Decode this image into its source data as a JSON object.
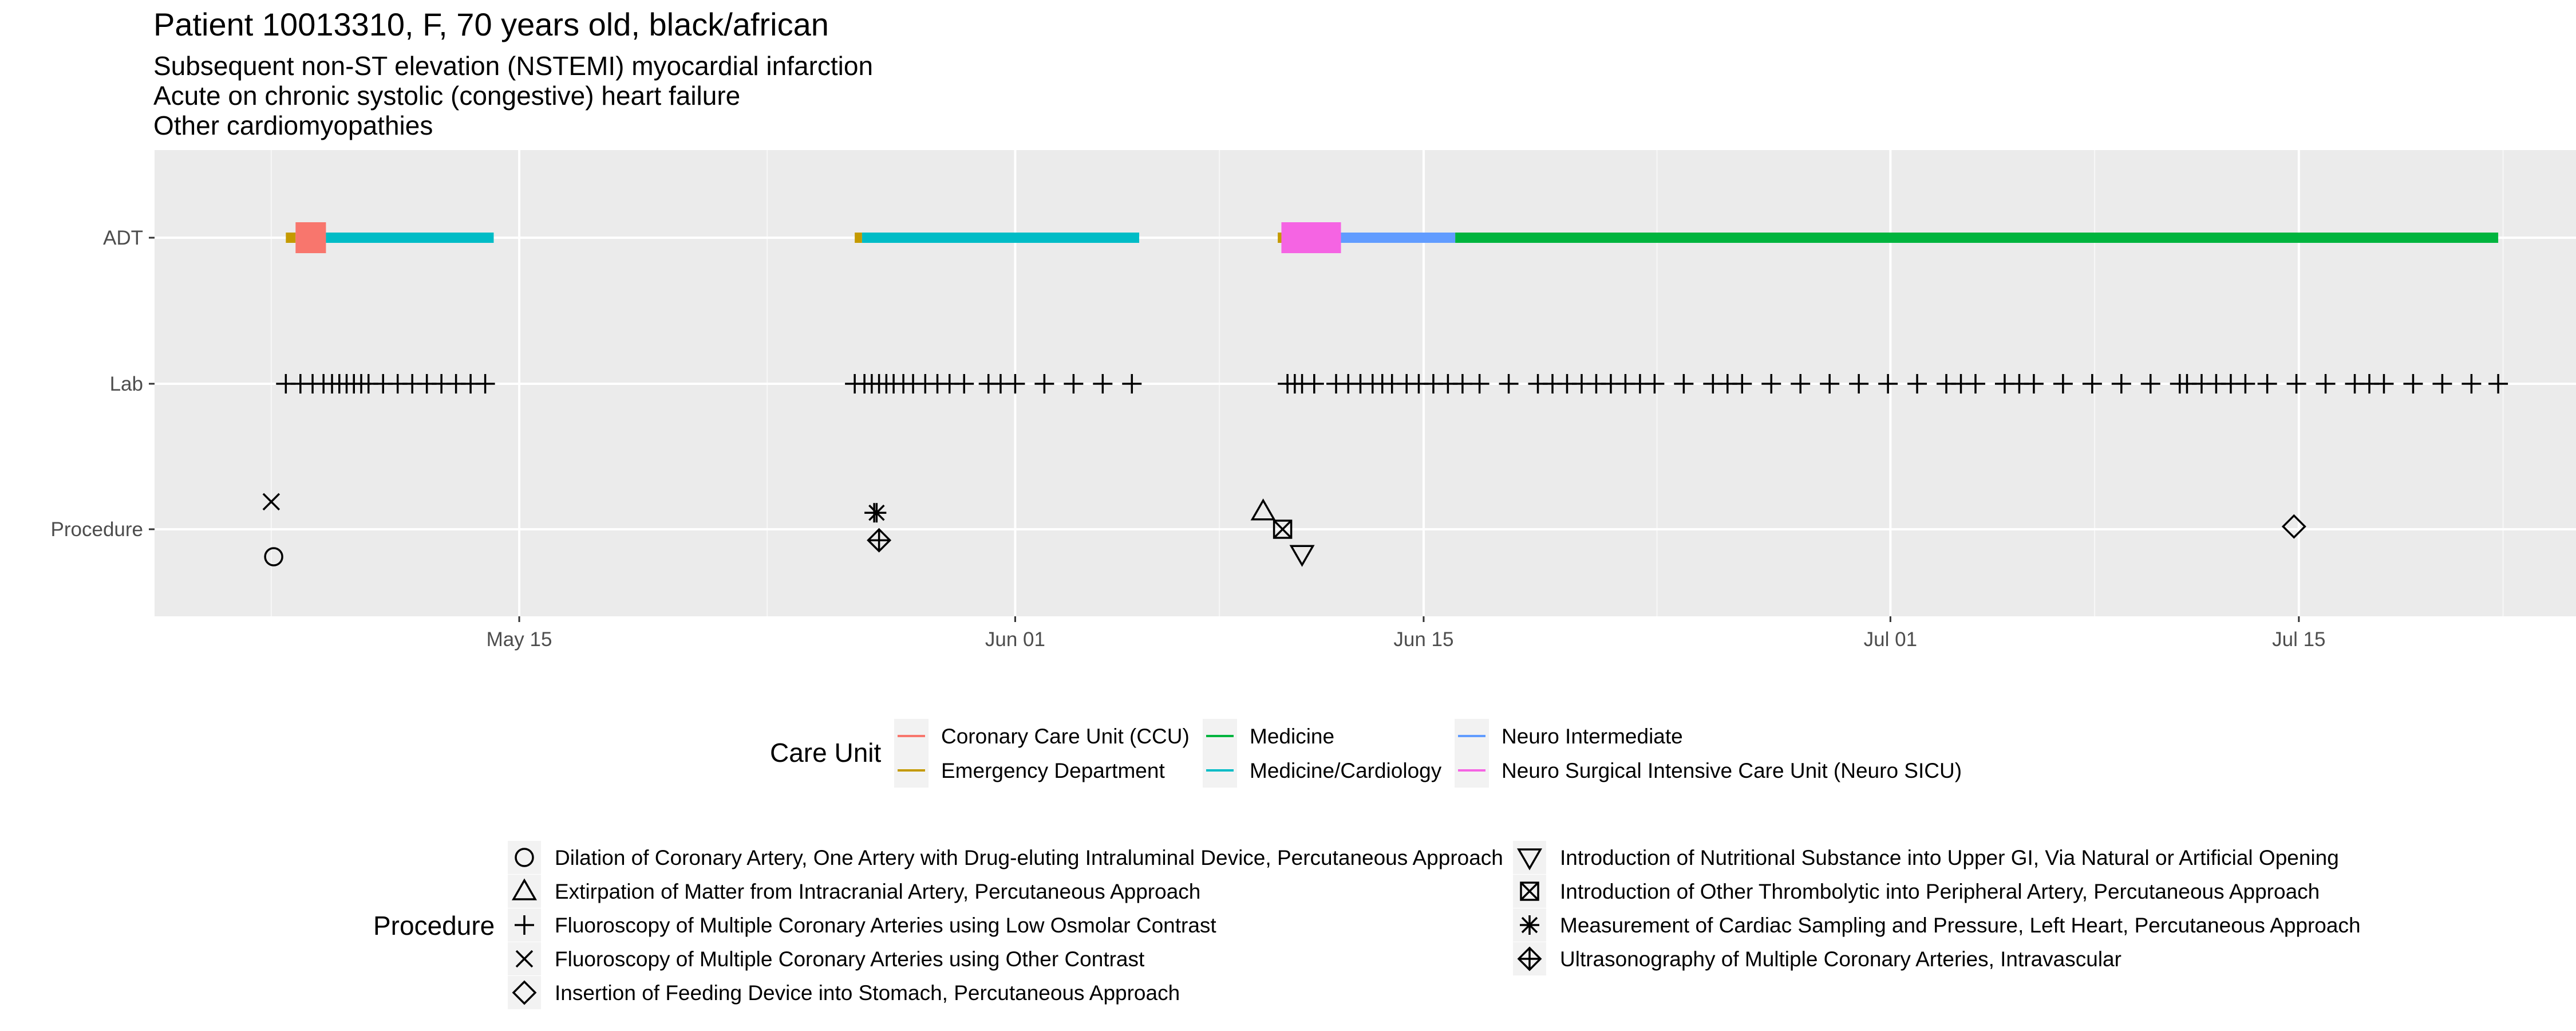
{
  "chart_data": {
    "type": "timeline",
    "title": "Patient 10013310, F, 70 years old, black/african",
    "subtitle_lines": [
      "Subsequent non-ST elevation (NSTEMI) myocardial infarction",
      "Acute on chronic systolic (congestive) heart failure",
      "Other cardiomyopathies"
    ],
    "y_categories": [
      "ADT",
      "Lab",
      "Procedure"
    ],
    "x_ticks": [
      {
        "label": "May 15",
        "date": "2170-05-15"
      },
      {
        "label": "Jun 01",
        "date": "2170-06-01"
      },
      {
        "label": "Jun 15",
        "date": "2170-06-15"
      },
      {
        "label": "Jul 01",
        "date": "2170-07-01"
      },
      {
        "label": "Jul 15",
        "date": "2170-07-15"
      }
    ],
    "xlim": [
      "2170-05-02T12:00",
      "2170-07-24T12:00"
    ],
    "grid": true,
    "care_unit_legend": {
      "title": "Care Unit",
      "items": [
        {
          "name": "Coronary Care Unit (CCU)",
          "color": "#F8766D"
        },
        {
          "name": "Emergency Department",
          "color": "#C49A00"
        },
        {
          "name": "Medicine",
          "color": "#00B43E"
        },
        {
          "name": "Medicine/Cardiology",
          "color": "#00BCC6"
        },
        {
          "name": "Neuro Intermediate",
          "color": "#619CFF"
        },
        {
          "name": "Neuro Surgical Intensive Care Unit (Neuro SICU)",
          "color": "#F564E3"
        }
      ]
    },
    "adt_segments": [
      {
        "unit": "Emergency Department",
        "start": "2170-05-07T00:00",
        "end": "2170-05-07T08:00",
        "thick": false
      },
      {
        "unit": "Coronary Care Unit (CCU)",
        "start": "2170-05-07T08:00",
        "end": "2170-05-08T09:00",
        "thick": true
      },
      {
        "unit": "Medicine/Cardiology",
        "start": "2170-05-08T09:00",
        "end": "2170-05-14T03:00",
        "thick": false
      },
      {
        "unit": "Emergency Department",
        "start": "2170-05-26T12:00",
        "end": "2170-05-26T18:00",
        "thick": false
      },
      {
        "unit": "Medicine/Cardiology",
        "start": "2170-05-26T18:00",
        "end": "2170-06-05T06:00",
        "thick": false
      },
      {
        "unit": "Emergency Department",
        "start": "2170-06-10T00:00",
        "end": "2170-06-10T03:00",
        "thick": false
      },
      {
        "unit": "Neuro Surgical Intensive Care Unit (Neuro SICU)",
        "start": "2170-06-10T03:00",
        "end": "2170-06-12T04:00",
        "thick": true
      },
      {
        "unit": "Neuro Intermediate",
        "start": "2170-06-12T04:00",
        "end": "2170-06-16T02:00",
        "thick": false
      },
      {
        "unit": "Medicine",
        "start": "2170-06-16T02:00",
        "end": "2170-07-21T20:00",
        "thick": false
      }
    ],
    "lab_times": [
      "2170-05-07T00:00",
      "2170-05-07T12:00",
      "2170-05-07T22:00",
      "2170-05-08T07:00",
      "2170-05-08T14:00",
      "2170-05-08T20:00",
      "2170-05-09T02:00",
      "2170-05-09T08:00",
      "2170-05-09T14:00",
      "2170-05-09T20:00",
      "2170-05-10T08:00",
      "2170-05-10T20:00",
      "2170-05-11T08:00",
      "2170-05-11T20:00",
      "2170-05-12T08:00",
      "2170-05-12T20:00",
      "2170-05-13T08:00",
      "2170-05-13T20:00",
      "2170-05-26T12:00",
      "2170-05-26T20:00",
      "2170-05-27T02:00",
      "2170-05-27T08:00",
      "2170-05-27T14:00",
      "2170-05-27T20:00",
      "2170-05-28T04:00",
      "2170-05-28T12:00",
      "2170-05-28T22:00",
      "2170-05-29T08:00",
      "2170-05-29T18:00",
      "2170-05-30T06:00",
      "2170-05-31T02:00",
      "2170-05-31T12:00",
      "2170-06-01T00:00",
      "2170-06-02T00:00",
      "2170-06-03T00:00",
      "2170-06-04T00:00",
      "2170-06-05T00:00",
      "2170-06-10T08:00",
      "2170-06-10T14:00",
      "2170-06-10T20:00",
      "2170-06-11T06:00",
      "2170-06-12T00:00",
      "2170-06-12T10:00",
      "2170-06-12T20:00",
      "2170-06-13T06:00",
      "2170-06-13T14:00",
      "2170-06-13T22:00",
      "2170-06-14T10:00",
      "2170-06-14T20:00",
      "2170-06-15T08:00",
      "2170-06-15T20:00",
      "2170-06-16T08:00",
      "2170-06-16T22:00",
      "2170-06-17T22:00",
      "2170-06-18T22:00",
      "2170-06-19T10:00",
      "2170-06-19T22:00",
      "2170-06-20T10:00",
      "2170-06-20T22:00",
      "2170-06-21T10:00",
      "2170-06-21T22:00",
      "2170-06-22T10:00",
      "2170-06-22T22:00",
      "2170-06-23T22:00",
      "2170-06-24T22:00",
      "2170-06-25T10:00",
      "2170-06-25T22:00",
      "2170-06-26T22:00",
      "2170-06-27T22:00",
      "2170-06-28T22:00",
      "2170-06-29T22:00",
      "2170-06-30T22:00",
      "2170-07-01T22:00",
      "2170-07-02T22:00",
      "2170-07-03T10:00",
      "2170-07-03T22:00",
      "2170-07-04T22:00",
      "2170-07-05T10:00",
      "2170-07-05T22:00",
      "2170-07-06T22:00",
      "2170-07-07T22:00",
      "2170-07-08T22:00",
      "2170-07-09T22:00",
      "2170-07-10T22:00",
      "2170-07-11T04:00",
      "2170-07-11T16:00",
      "2170-07-12T04:00",
      "2170-07-12T16:00",
      "2170-07-13T04:00",
      "2170-07-13T22:00",
      "2170-07-14T22:00",
      "2170-07-15T22:00",
      "2170-07-16T22:00",
      "2170-07-17T10:00",
      "2170-07-17T22:00",
      "2170-07-18T22:00",
      "2170-07-19T22:00",
      "2170-07-20T22:00",
      "2170-07-21T20:00"
    ],
    "procedure_legend": {
      "title": "Procedure",
      "items": [
        {
          "name": "Dilation of Coronary Artery, One Artery with Drug-eluting Intraluminal Device, Percutaneous Approach",
          "shape": "circle"
        },
        {
          "name": "Extirpation of Matter from Intracranial Artery, Percutaneous Approach",
          "shape": "triangle-up"
        },
        {
          "name": "Fluoroscopy of Multiple Coronary Arteries using Low Osmolar Contrast",
          "shape": "plus"
        },
        {
          "name": "Fluoroscopy of Multiple Coronary Arteries using Other Contrast",
          "shape": "cross"
        },
        {
          "name": "Insertion of Feeding Device into Stomach, Percutaneous Approach",
          "shape": "diamond"
        },
        {
          "name": "Introduction of Nutritional Substance into Upper GI, Via Natural or Artificial Opening",
          "shape": "triangle-down"
        },
        {
          "name": "Introduction of Other Thrombolytic into Peripheral Artery, Percutaneous Approach",
          "shape": "square-cross"
        },
        {
          "name": "Measurement of Cardiac Sampling and Pressure, Left Heart, Percutaneous Approach",
          "shape": "asterisk"
        },
        {
          "name": "Ultrasonography of Multiple Coronary Arteries, Intravascular",
          "shape": "diamond-plus"
        }
      ]
    },
    "procedures": [
      {
        "shape": "cross",
        "time": "2170-05-06T12:00",
        "offset": 1
      },
      {
        "shape": "circle",
        "time": "2170-05-06T14:00",
        "offset": -1
      },
      {
        "shape": "plus",
        "time": "2170-05-27T04:00",
        "offset": 0.6
      },
      {
        "shape": "asterisk",
        "time": "2170-05-27T06:00",
        "offset": 0.6
      },
      {
        "shape": "diamond-plus",
        "time": "2170-05-27T08:00",
        "offset": -0.4
      },
      {
        "shape": "triangle-up",
        "time": "2170-06-09T12:00",
        "offset": 0.65
      },
      {
        "shape": "square-cross",
        "time": "2170-06-10T04:00",
        "offset": 0
      },
      {
        "shape": "triangle-down",
        "time": "2170-06-10T20:00",
        "offset": -0.9
      },
      {
        "shape": "diamond",
        "time": "2170-07-14T20:00",
        "offset": 0.1
      }
    ]
  }
}
